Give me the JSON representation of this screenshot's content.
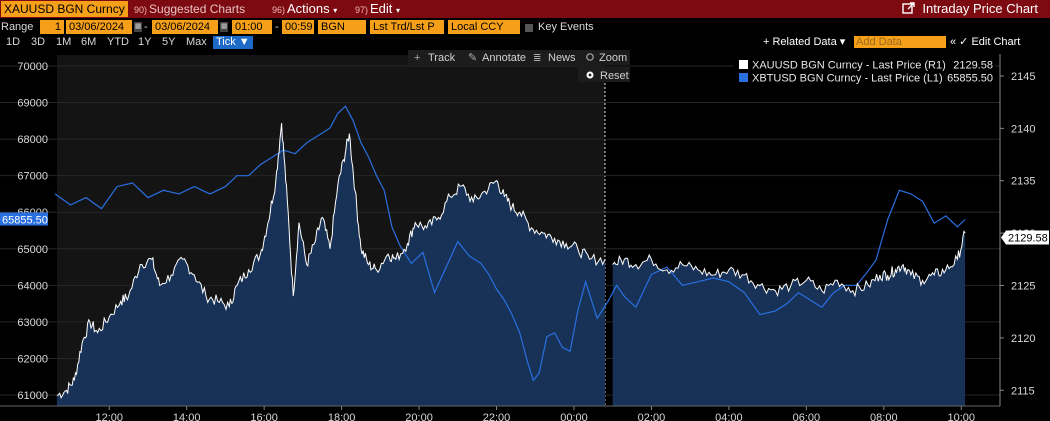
{
  "header": {
    "ticker": "XAUUSD BGN Curncy",
    "menu1_num": "90)",
    "menu1": "Suggested Charts",
    "menu2_num": "96)",
    "menu2": "Actions",
    "menu3_num": "97)",
    "menu3": "Edit",
    "title": "Intraday Price Chart"
  },
  "controls": {
    "range_label": "Range",
    "range_num": "1",
    "start_date": "03/06/2024",
    "end_date": "03/06/2024",
    "start_time": "01:00",
    "end_time": "00:59",
    "source": "BGN",
    "price_field": "Lst Trd/Lst P",
    "currency": "Local CCY",
    "key_events": "Key Events"
  },
  "periods": [
    "1D",
    "3D",
    "1M",
    "6M",
    "YTD",
    "1Y",
    "5Y",
    "Max"
  ],
  "tick_label": "Tick ▼",
  "related_data": "+ Related Data ▾",
  "add_data_placeholder": "Add Data",
  "edit_chart": "« ✓ Edit Chart",
  "tools": {
    "track": "Track",
    "annotate": "Annotate",
    "news": "News",
    "zoom": "Zoom",
    "reset": "Reset"
  },
  "colors": {
    "background": "#000000",
    "plot_session": "#141414",
    "gold_line": "#ffffff",
    "gold_fill": "#173256",
    "btc_line": "#2a6fe0",
    "header": "#7d0a10",
    "accent": "#f6a01a"
  },
  "chart_data": {
    "type": "line",
    "title": "",
    "left_axis": {
      "label": "XBTUSD",
      "ylim": [
        60700,
        70300
      ],
      "ticks": [
        61000,
        62000,
        63000,
        64000,
        65000,
        66000,
        67000,
        68000,
        69000,
        70000
      ]
    },
    "right_axis": {
      "label": "XAUUSD",
      "ylim": [
        2113.5,
        2147
      ],
      "ticks": [
        2115,
        2120,
        2125,
        2130,
        2135,
        2140,
        2145
      ]
    },
    "x_axis": {
      "range_hours": [
        10.6,
        11.0
      ],
      "ticks": [
        "12:00",
        "14:00",
        "16:00",
        "18:00",
        "20:00",
        "22:00",
        "00:00",
        "02:00",
        "04:00",
        "06:00",
        "08:00",
        "10:00"
      ]
    },
    "legend_position": "top-right",
    "series": [
      {
        "name": "XAUUSD BGN Curncy - Last Price (R1)",
        "axis": "right",
        "last_value": "2129.58",
        "segments": [
          {
            "x": [
              10.65,
              10.9,
              11.1,
              11.3,
              11.5,
              11.7,
              12.0,
              12.3,
              12.5,
              12.8,
              13.1,
              13.3,
              13.6,
              13.9,
              14.2,
              14.5,
              14.8,
              15.1,
              15.3,
              15.6,
              15.9,
              16.1,
              16.3,
              16.45,
              16.6,
              16.75,
              16.9,
              17.1,
              17.3,
              17.5,
              17.7,
              17.9,
              18.05,
              18.2,
              18.35,
              18.5,
              18.7,
              18.9,
              19.2,
              19.4,
              19.7,
              19.9,
              20.2,
              20.5,
              20.8,
              21.1,
              21.4,
              21.7,
              22.0,
              22.2,
              22.4,
              22.6,
              22.9,
              23.2,
              23.5,
              23.8,
              24.1,
              24.4,
              24.8
            ],
            "y": [
              2114.5,
              2115.0,
              2116.0,
              2119.5,
              2121.5,
              2120.5,
              2122.0,
              2123.5,
              2124.0,
              2127.0,
              2127.5,
              2125.0,
              2126.0,
              2127.5,
              2126.0,
              2124.0,
              2123.5,
              2123.0,
              2125.0,
              2126.5,
              2128.0,
              2131.0,
              2135.0,
              2140.5,
              2133.0,
              2124.0,
              2131.0,
              2127.0,
              2129.0,
              2131.5,
              2128.5,
              2134.5,
              2137.0,
              2139.5,
              2134.0,
              2128.5,
              2127.0,
              2126.5,
              2128.0,
              2127.5,
              2129.0,
              2131.0,
              2130.5,
              2131.5,
              2133.5,
              2134.5,
              2133.0,
              2134.0,
              2135.0,
              2133.5,
              2132.5,
              2132.0,
              2130.5,
              2130.0,
              2129.5,
              2129.0,
              2128.5,
              2127.5,
              2127.5
            ]
          },
          {
            "x": [
              25.0,
              25.3,
              25.6,
              26.0,
              26.4,
              26.8,
              27.2,
              27.6,
              28.0,
              28.4,
              28.8,
              29.2,
              29.6,
              30.0,
              30.4,
              30.8,
              31.2,
              31.6,
              31.9,
              32.1,
              32.3,
              32.5,
              32.7,
              33.0,
              33.3,
              33.6,
              33.9,
              34.1
            ],
            "y": [
              2127.0,
              2127.5,
              2127.0,
              2127.5,
              2126.5,
              2127.0,
              2126.5,
              2126.0,
              2126.5,
              2126.0,
              2125.0,
              2124.5,
              2125.0,
              2125.5,
              2124.5,
              2125.5,
              2124.5,
              2125.0,
              2126.0,
              2126.0,
              2126.5,
              2127.0,
              2126.0,
              2125.5,
              2126.0,
              2126.5,
              2127.5,
              2130.0
            ]
          }
        ]
      },
      {
        "name": "XBTUSD BGN Curncy - Last Price (L1)",
        "axis": "left",
        "last_value": "65855.50",
        "segments": [
          {
            "x": [
              10.6,
              11.0,
              11.4,
              11.8,
              12.2,
              12.6,
              13.0,
              13.4,
              13.8,
              14.2,
              14.6,
              15.0,
              15.3,
              15.6,
              15.9,
              16.2,
              16.5,
              16.8,
              17.1,
              17.4,
              17.7,
              17.9,
              18.1,
              18.3,
              18.5,
              18.7,
              18.9,
              19.1,
              19.3,
              19.5,
              19.8,
              20.1,
              20.4,
              20.7,
              21.0,
              21.3,
              21.6,
              21.8,
              22.0,
              22.2,
              22.4,
              22.6,
              22.8,
              22.95,
              23.1,
              23.3,
              23.5,
              23.7,
              23.9,
              24.1,
              24.3,
              24.6,
              24.9,
              25.1,
              25.3,
              25.6,
              26.0,
              26.4,
              26.8,
              27.2,
              27.6,
              28.0,
              28.4,
              28.8,
              29.2,
              29.5,
              29.8,
              30.1,
              30.4,
              30.7,
              31.0,
              31.3,
              31.6,
              31.8,
              32.1,
              32.4,
              32.7,
              33.0,
              33.3,
              33.6,
              33.9,
              34.1
            ],
            "y": [
              66500,
              66200,
              66400,
              66100,
              66700,
              66800,
              66400,
              66600,
              66500,
              66700,
              66500,
              66700,
              67000,
              67000,
              67300,
              67500,
              67700,
              67600,
              67900,
              68100,
              68300,
              68700,
              68900,
              68500,
              67900,
              67500,
              67000,
              66600,
              65600,
              65100,
              64600,
              64900,
              63800,
              64500,
              65200,
              64800,
              64600,
              64300,
              63900,
              63600,
              63200,
              62700,
              61900,
              61400,
              61600,
              62600,
              62700,
              62300,
              62200,
              63300,
              64100,
              63100,
              63600,
              64000,
              63700,
              63400,
              64300,
              64500,
              64000,
              64100,
              64200,
              64100,
              63800,
              63200,
              63300,
              63500,
              63800,
              63600,
              63400,
              63800,
              64000,
              64000,
              64400,
              64700,
              65800,
              66600,
              66500,
              66300,
              65700,
              65900,
              65600,
              65800
            ]
          }
        ]
      }
    ]
  }
}
